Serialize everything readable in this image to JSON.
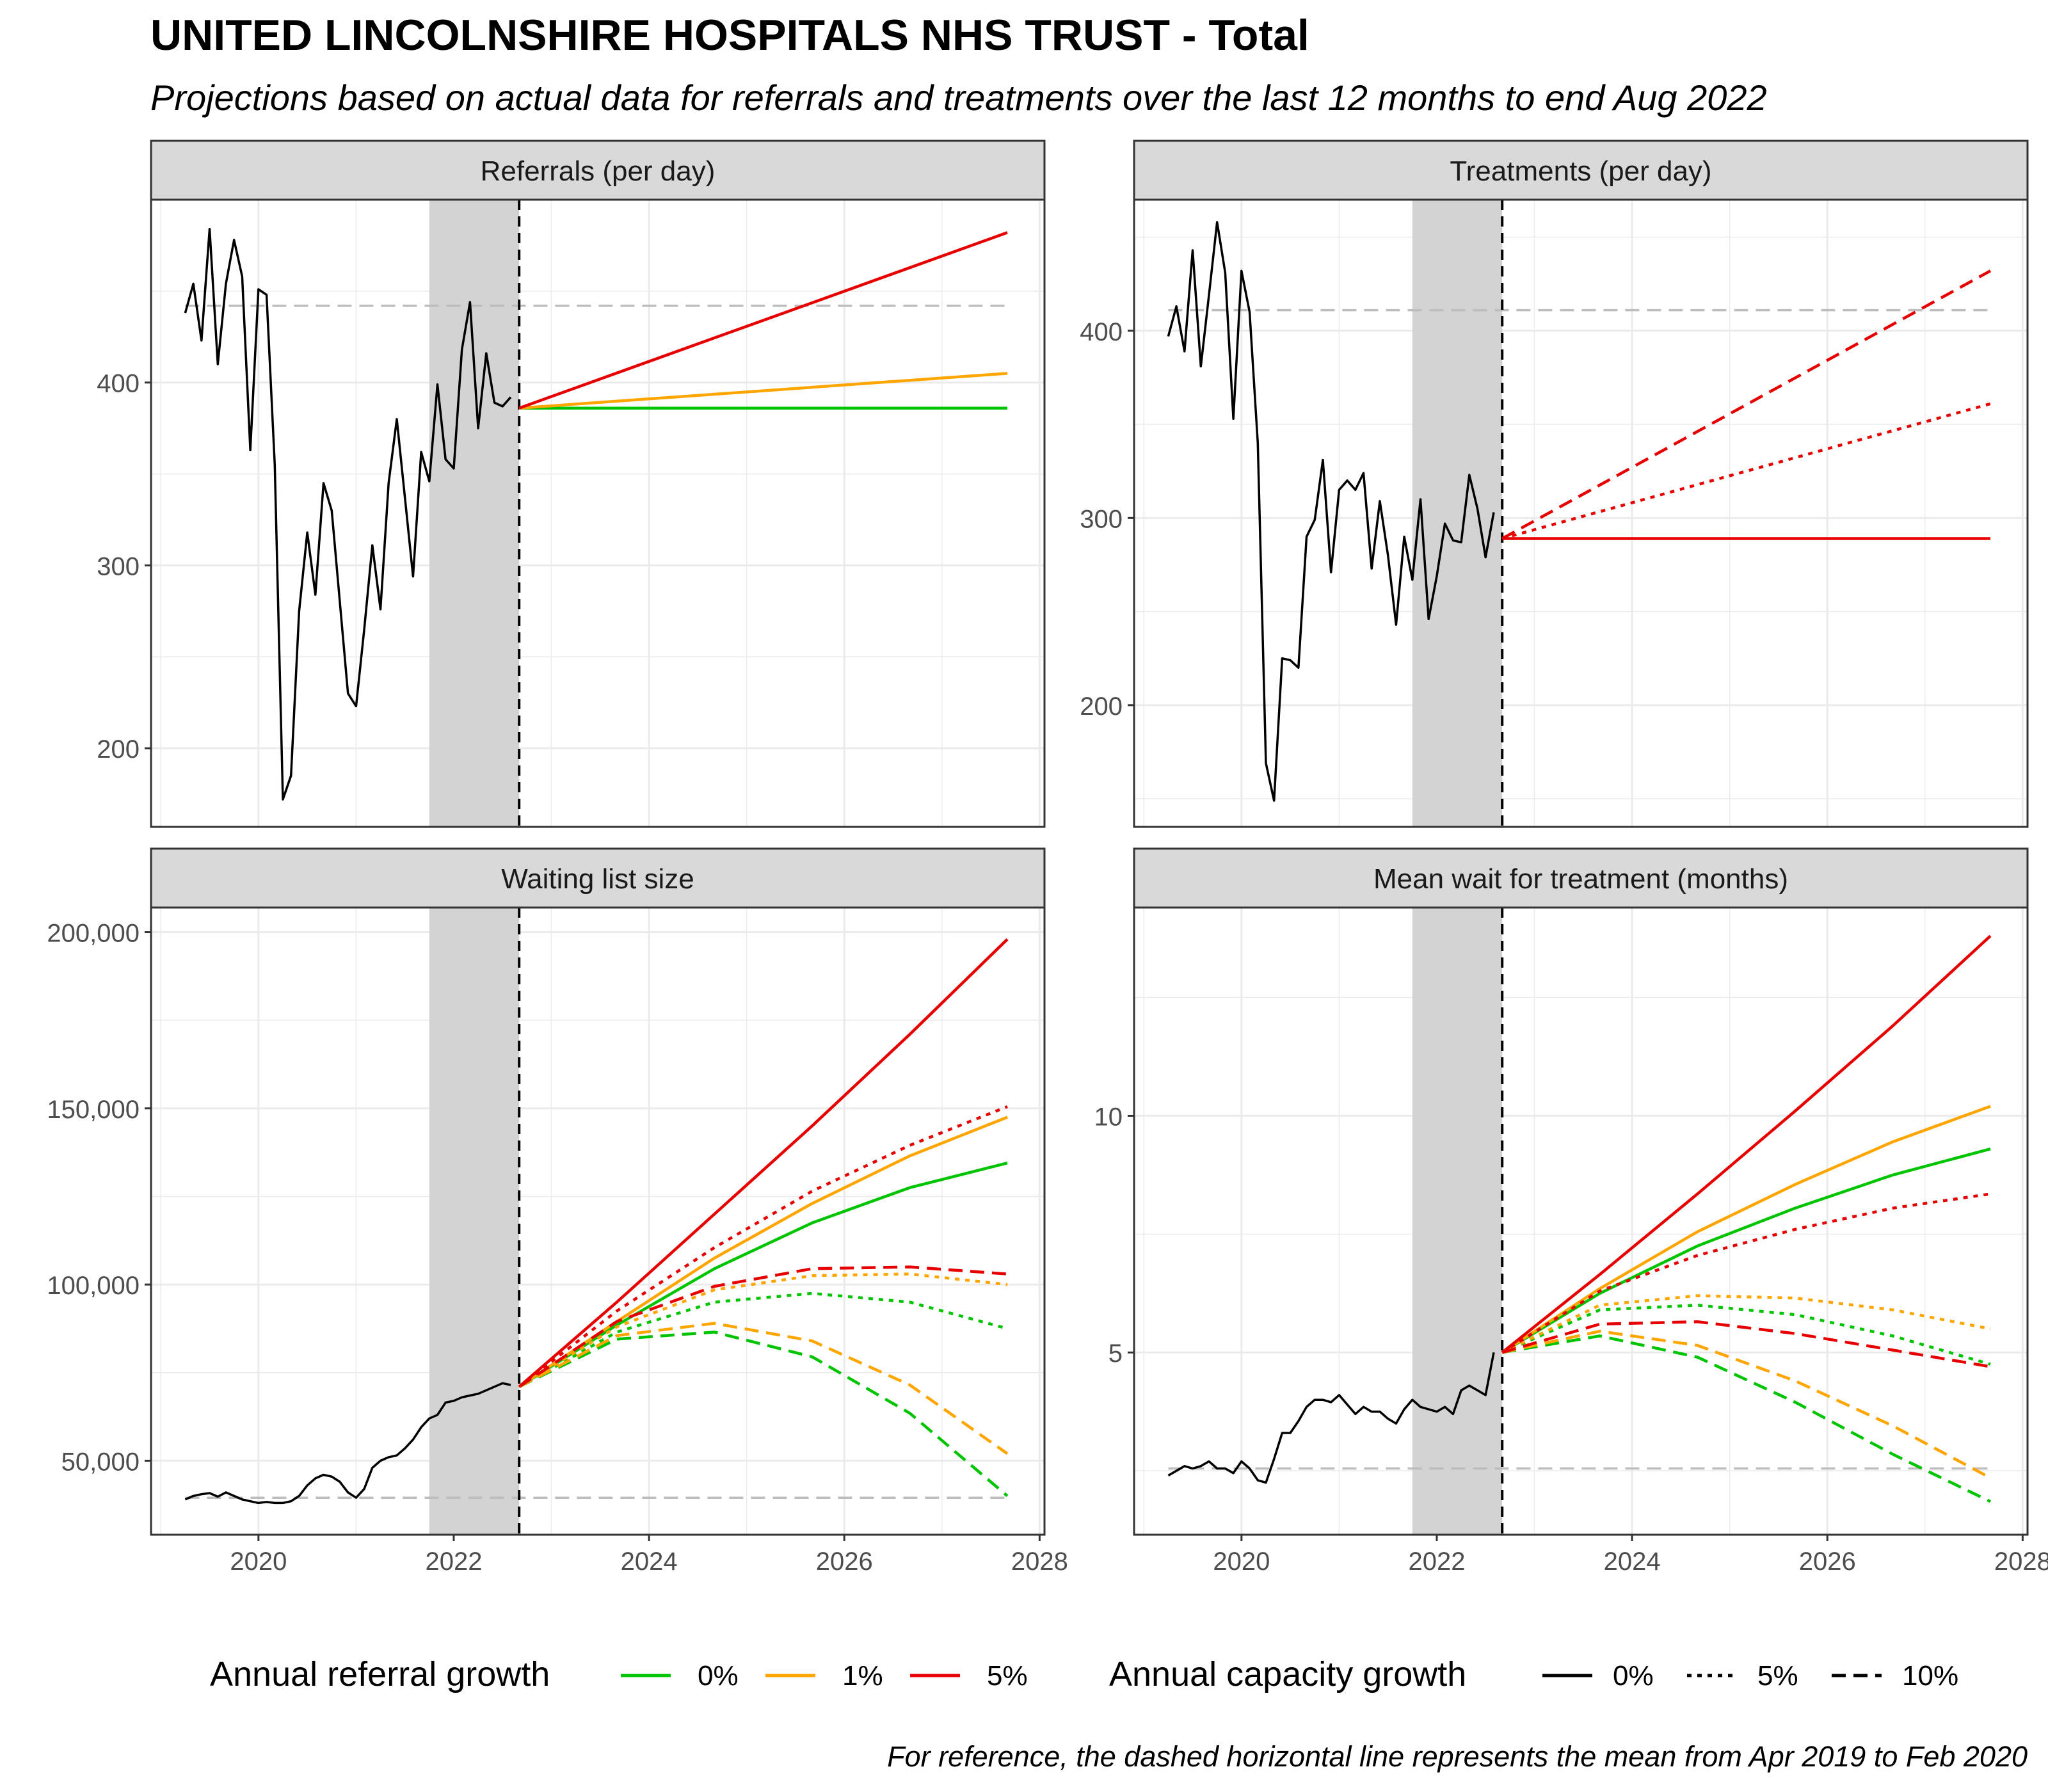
{
  "title": "UNITED LINCOLNSHIRE HOSPITALS NHS TRUST - Total",
  "subtitle": "Projections based on actual data for referrals and treatments over the last 12 months to end Aug 2022",
  "caption": "For reference, the dashed horizontal line represents the mean from Apr 2019 to Feb 2020",
  "colors": {
    "0%": "#00c400",
    "1%": "#ffa500",
    "5%": "#e60000",
    "actual": "#000000",
    "reference": "#bdbdbd",
    "strip": "#d9d9d9",
    "shade": "#d3d3d3",
    "grid": "#ebebeb"
  },
  "legend": {
    "referral_title": "Annual referral growth",
    "referral_items": [
      {
        "label": "0%",
        "color": "#00c400"
      },
      {
        "label": "1%",
        "color": "#ffa500"
      },
      {
        "label": "5%",
        "color": "#e60000"
      }
    ],
    "capacity_title": "Annual capacity growth",
    "capacity_items": [
      {
        "label": "0%",
        "dash": "solid"
      },
      {
        "label": "5%",
        "dash": "dotted"
      },
      {
        "label": "10%",
        "dash": "dashed"
      }
    ]
  },
  "chart_data": [
    {
      "type": "line",
      "title": "Referrals (per day)",
      "x_ticks": [
        2020,
        2022,
        2024,
        2026,
        2028
      ],
      "y_ticks": [
        200,
        300,
        400
      ],
      "y_tick_labels": [
        "200",
        "300",
        "400"
      ],
      "xlim": [
        2018.9,
        2028.05
      ],
      "ylim": [
        157,
        500
      ],
      "shaded_period": [
        2021.75,
        2022.67
      ],
      "projection_start": 2022.67,
      "projection_end": 2027.67,
      "reference_mean": 442,
      "actual": {
        "x_start": 2019.25,
        "step_months": 1,
        "values": [
          438,
          454,
          423,
          484,
          410,
          454,
          478,
          458,
          363,
          451,
          448,
          355,
          172,
          185,
          275,
          318,
          284,
          345,
          330,
          280,
          230,
          223,
          265,
          311,
          276,
          345,
          380,
          337,
          294,
          362,
          346,
          399,
          358,
          353,
          418,
          444,
          375,
          416,
          389,
          387,
          392
        ]
      },
      "series": [
        {
          "referral_growth": "0%",
          "capacity_growth": "0%",
          "x": [
            2022.67,
            2027.67
          ],
          "y": [
            386,
            386
          ]
        },
        {
          "referral_growth": "1%",
          "capacity_growth": "0%",
          "x": [
            2022.67,
            2027.67
          ],
          "y": [
            386,
            405
          ]
        },
        {
          "referral_growth": "5%",
          "capacity_growth": "0%",
          "x": [
            2022.67,
            2027.67
          ],
          "y": [
            386,
            482
          ]
        }
      ]
    },
    {
      "type": "line",
      "title": "Treatments (per day)",
      "x_ticks": [
        2020,
        2022,
        2024,
        2026,
        2028
      ],
      "y_ticks": [
        200,
        300,
        400
      ],
      "y_tick_labels": [
        "200",
        "300",
        "400"
      ],
      "xlim": [
        2018.9,
        2028.05
      ],
      "ylim": [
        135,
        470
      ],
      "shaded_period": [
        2021.75,
        2022.67
      ],
      "projection_start": 2022.67,
      "projection_end": 2027.67,
      "reference_mean": 411,
      "actual": {
        "x_start": 2019.25,
        "step_months": 1,
        "values": [
          397,
          413,
          389,
          443,
          381,
          419,
          458,
          431,
          353,
          432,
          410,
          340,
          169,
          149,
          225,
          224,
          220,
          290,
          299,
          331,
          271,
          315,
          320,
          315,
          324,
          273,
          309,
          280,
          243,
          290,
          267,
          310,
          246,
          269,
          297,
          288,
          287,
          323,
          305,
          279,
          303
        ]
      },
      "series": [
        {
          "referral_growth": "5%",
          "capacity_growth": "0%",
          "x": [
            2022.67,
            2027.67
          ],
          "y": [
            289,
            289
          ]
        },
        {
          "referral_growth": "5%",
          "capacity_growth": "5%",
          "x": [
            2022.67,
            2027.67
          ],
          "y": [
            289,
            361
          ]
        },
        {
          "referral_growth": "5%",
          "capacity_growth": "10%",
          "x": [
            2022.67,
            2027.67
          ],
          "y": [
            289,
            432
          ]
        }
      ]
    },
    {
      "type": "line",
      "title": "Waiting list size",
      "x_ticks": [
        2020,
        2022,
        2024,
        2026,
        2028
      ],
      "y_ticks": [
        50000,
        100000,
        150000,
        200000
      ],
      "y_tick_labels": [
        "50,000",
        "100,000",
        "150,000",
        "200,000"
      ],
      "xlim": [
        2018.9,
        2028.05
      ],
      "ylim": [
        29000,
        207000
      ],
      "shaded_period": [
        2021.75,
        2022.67
      ],
      "projection_start": 2022.67,
      "projection_end": 2027.67,
      "reference_mean": 39500,
      "actual": {
        "x_start": 2019.25,
        "step_months": 1,
        "values": [
          39000,
          40000,
          40500,
          40800,
          39800,
          41000,
          40000,
          39000,
          38500,
          38000,
          38300,
          38000,
          38000,
          38500,
          40000,
          43000,
          45000,
          46000,
          45500,
          44000,
          41000,
          39500,
          42000,
          48000,
          50000,
          51000,
          51500,
          53500,
          56000,
          59500,
          62000,
          63000,
          66500,
          67000,
          68000,
          68500,
          69000,
          70000,
          71000,
          72000,
          71500
        ]
      },
      "series": [
        {
          "referral_growth": "0%",
          "capacity_growth": "0%",
          "x": [
            2022.67,
            2023.67,
            2024.67,
            2025.67,
            2026.67,
            2027.67
          ],
          "y": [
            71000,
            88500,
            104500,
            117500,
            127500,
            134500
          ]
        },
        {
          "referral_growth": "1%",
          "capacity_growth": "0%",
          "x": [
            2022.67,
            2023.67,
            2024.67,
            2025.67,
            2026.67,
            2027.67
          ],
          "y": [
            71000,
            89500,
            107500,
            123000,
            136500,
            147500
          ]
        },
        {
          "referral_growth": "5%",
          "capacity_growth": "0%",
          "x": [
            2022.67,
            2023.67,
            2024.67,
            2025.67,
            2026.67,
            2027.67
          ],
          "y": [
            71000,
            95000,
            120000,
            145000,
            171000,
            198000
          ]
        },
        {
          "referral_growth": "0%",
          "capacity_growth": "5%",
          "x": [
            2022.67,
            2023.67,
            2024.67,
            2025.67,
            2026.67,
            2027.67
          ],
          "y": [
            71000,
            86500,
            95000,
            97500,
            95000,
            87500
          ]
        },
        {
          "referral_growth": "1%",
          "capacity_growth": "5%",
          "x": [
            2022.67,
            2023.67,
            2024.67,
            2025.67,
            2026.67,
            2027.67
          ],
          "y": [
            71000,
            88000,
            98500,
            102500,
            103000,
            100000
          ]
        },
        {
          "referral_growth": "5%",
          "capacity_growth": "5%",
          "x": [
            2022.67,
            2023.67,
            2024.67,
            2025.67,
            2026.67,
            2027.67
          ],
          "y": [
            71000,
            92500,
            110500,
            126500,
            139500,
            150500
          ]
        },
        {
          "referral_growth": "0%",
          "capacity_growth": "10%",
          "x": [
            2022.67,
            2023.67,
            2024.67,
            2025.67,
            2026.67,
            2027.67
          ],
          "y": [
            71000,
            84500,
            86500,
            79500,
            63500,
            40000
          ]
        },
        {
          "referral_growth": "1%",
          "capacity_growth": "10%",
          "x": [
            2022.67,
            2023.67,
            2024.67,
            2025.67,
            2026.67,
            2027.67
          ],
          "y": [
            71000,
            85500,
            89000,
            84000,
            71500,
            52000
          ]
        },
        {
          "referral_growth": "5%",
          "capacity_growth": "10%",
          "x": [
            2022.67,
            2023.67,
            2024.67,
            2025.67,
            2026.67,
            2027.67
          ],
          "y": [
            71000,
            89500,
            99500,
            104500,
            105000,
            103000
          ]
        }
      ]
    },
    {
      "type": "line",
      "title": "Mean wait for treatment (months)",
      "x_ticks": [
        2020,
        2022,
        2024,
        2026,
        2028
      ],
      "y_ticks": [
        5,
        10
      ],
      "y_tick_labels": [
        "5",
        "10"
      ],
      "xlim": [
        2018.9,
        2028.05
      ],
      "ylim": [
        1.15,
        14.4
      ],
      "shaded_period": [
        2021.75,
        2022.67
      ],
      "projection_start": 2022.67,
      "projection_end": 2027.67,
      "reference_mean": 2.55,
      "actual": {
        "x_start": 2019.25,
        "step_months": 1,
        "values": [
          2.4,
          2.5,
          2.6,
          2.55,
          2.6,
          2.7,
          2.55,
          2.55,
          2.45,
          2.7,
          2.55,
          2.3,
          2.25,
          2.75,
          3.3,
          3.3,
          3.55,
          3.85,
          4.0,
          4.0,
          3.95,
          4.1,
          3.9,
          3.7,
          3.85,
          3.75,
          3.75,
          3.6,
          3.5,
          3.8,
          4.0,
          3.85,
          3.8,
          3.75,
          3.85,
          3.7,
          4.2,
          4.3,
          4.2,
          4.1,
          5.0
        ]
      },
      "series": [
        {
          "referral_growth": "0%",
          "capacity_growth": "0%",
          "x": [
            2022.67,
            2023.67,
            2024.67,
            2025.67,
            2026.67,
            2027.67
          ],
          "y": [
            5.0,
            6.25,
            7.25,
            8.05,
            8.75,
            9.3
          ]
        },
        {
          "referral_growth": "1%",
          "capacity_growth": "0%",
          "x": [
            2022.67,
            2023.67,
            2024.67,
            2025.67,
            2026.67,
            2027.67
          ],
          "y": [
            5.0,
            6.35,
            7.55,
            8.55,
            9.45,
            10.2
          ]
        },
        {
          "referral_growth": "5%",
          "capacity_growth": "0%",
          "x": [
            2022.67,
            2023.67,
            2024.67,
            2025.67,
            2026.67,
            2027.67
          ],
          "y": [
            5.0,
            6.65,
            8.35,
            10.1,
            11.9,
            13.8
          ]
        },
        {
          "referral_growth": "0%",
          "capacity_growth": "5%",
          "x": [
            2022.67,
            2023.67,
            2024.67,
            2025.67,
            2026.67,
            2027.67
          ],
          "y": [
            5.0,
            5.9,
            6.0,
            5.8,
            5.35,
            4.75
          ]
        },
        {
          "referral_growth": "1%",
          "capacity_growth": "5%",
          "x": [
            2022.67,
            2023.67,
            2024.67,
            2025.67,
            2026.67,
            2027.67
          ],
          "y": [
            5.0,
            6.0,
            6.2,
            6.15,
            5.9,
            5.5
          ]
        },
        {
          "referral_growth": "5%",
          "capacity_growth": "5%",
          "x": [
            2022.67,
            2023.67,
            2024.67,
            2025.67,
            2026.67,
            2027.67
          ],
          "y": [
            5.0,
            6.3,
            7.05,
            7.6,
            8.05,
            8.35
          ]
        },
        {
          "referral_growth": "0%",
          "capacity_growth": "10%",
          "x": [
            2022.67,
            2023.67,
            2024.67,
            2025.67,
            2026.67,
            2027.67
          ],
          "y": [
            5.0,
            5.35,
            4.9,
            3.95,
            2.85,
            1.85
          ]
        },
        {
          "referral_growth": "1%",
          "capacity_growth": "10%",
          "x": [
            2022.67,
            2023.67,
            2024.67,
            2025.67,
            2026.67,
            2027.67
          ],
          "y": [
            5.0,
            5.45,
            5.15,
            4.4,
            3.45,
            2.35
          ]
        },
        {
          "referral_growth": "5%",
          "capacity_growth": "10%",
          "x": [
            2022.67,
            2023.67,
            2024.67,
            2025.67,
            2026.67,
            2027.67
          ],
          "y": [
            5.0,
            5.6,
            5.65,
            5.4,
            5.05,
            4.7
          ]
        }
      ]
    }
  ]
}
